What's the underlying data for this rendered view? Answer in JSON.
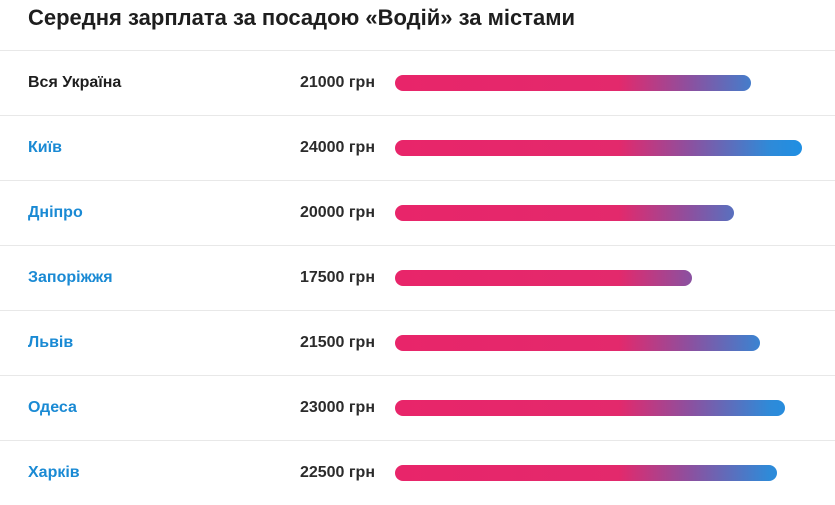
{
  "title": "Середня зарплата за посадою «Водій» за містами",
  "colors": {
    "bar_start": "#e8256a",
    "bar_end": "#1f8fe3",
    "link": "#1a8ad4",
    "text": "#1e1e1e"
  },
  "chart_data": {
    "type": "bar",
    "orientation": "horizontal",
    "title": "Середня зарплата за посадою «Водій» за містами",
    "unit": "грн",
    "xlim": [
      0,
      24000
    ],
    "categories": [
      "Вся Україна",
      "Київ",
      "Дніпро",
      "Запоріжжя",
      "Львів",
      "Одеса",
      "Харків"
    ],
    "values": [
      21000,
      24000,
      20000,
      17500,
      21500,
      23000,
      22500
    ],
    "labels": [
      "21000 грн",
      "24000 грн",
      "20000 грн",
      "17500 грн",
      "21500 грн",
      "23000 грн",
      "22500 грн"
    ],
    "links": [
      false,
      true,
      true,
      true,
      true,
      true,
      true
    ]
  }
}
